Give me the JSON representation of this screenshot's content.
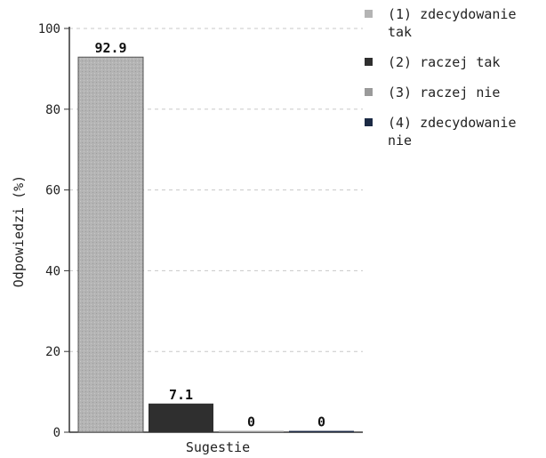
{
  "chart_data": {
    "type": "bar",
    "xlabel": "Sugestie",
    "ylabel": "Odpowiedzi (%)",
    "ylim": [
      0,
      100
    ],
    "yticks": [
      0,
      20,
      40,
      60,
      80,
      100
    ],
    "grid": "horizontal-dashed",
    "legend_position": "right",
    "series": [
      {
        "name": "(1) zdecydowanie tak",
        "value": 92.9,
        "label": "92.9",
        "color": "#b4b4b4"
      },
      {
        "name": "(2) raczej tak",
        "value": 7.1,
        "label": "7.1",
        "color": "#2f2f2f"
      },
      {
        "name": "(3) raczej nie",
        "value": 0,
        "label": "0",
        "color": "#9a9a9a"
      },
      {
        "name": "(4) zdecydowanie nie",
        "value": 0,
        "label": "0",
        "color": "#1c2a44"
      }
    ]
  }
}
